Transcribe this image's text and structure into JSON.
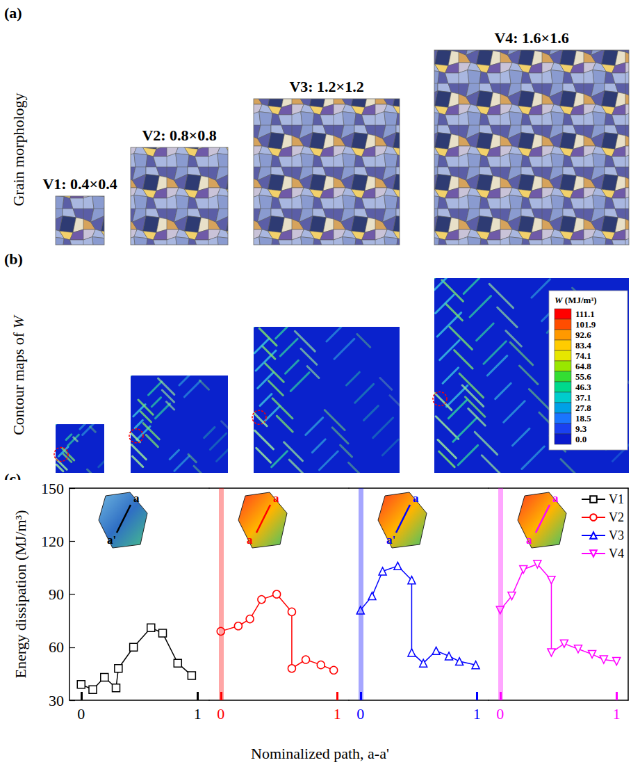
{
  "figure": {
    "panel_a": {
      "label": "(a)",
      "ylabel": "Grain morphology"
    },
    "panel_b": {
      "label": "(b)",
      "ylabel": "Contour maps of W",
      "variable": "W",
      "colorbar": {
        "title": "W (MJ/m³)",
        "ticks": [
          111.1,
          101.9,
          92.6,
          83.4,
          74.1,
          64.8,
          55.6,
          46.3,
          37.1,
          27.8,
          18.5,
          9.3,
          {
            "value": 0,
            "label": "0.0"
          }
        ],
        "colors": [
          "#ff0000",
          "#ff4d00",
          "#ff9900",
          "#ffcc00",
          "#e6e600",
          "#99e600",
          "#33dd33",
          "#00d98c",
          "#00cccc",
          "#00a0e6",
          "#1a75ff",
          "#1a40f0",
          "#0a1acc"
        ]
      }
    },
    "samples": [
      {
        "name": "V1",
        "title": "V1: 0.4×0.4",
        "size": [
          0.4,
          0.4
        ]
      },
      {
        "name": "V2",
        "title": "V2: 0.8×0.8",
        "size": [
          0.8,
          0.8
        ]
      },
      {
        "name": "V3",
        "title": "V3: 1.2×1.2",
        "size": [
          1.2,
          1.2
        ]
      },
      {
        "name": "V4",
        "title": "V4: 1.6×1.6",
        "size": [
          1.6,
          1.6
        ]
      }
    ]
  },
  "chart_data": {
    "label": "(c)",
    "type": "line",
    "xlabel": "Nominalized path, a-a'",
    "ylabel": "Energy dissipation (MJ/m³)",
    "xlim": [
      -0.1,
      1.1
    ],
    "xticks": [
      0,
      1
    ],
    "ylim": [
      30,
      150
    ],
    "yticks": [
      30,
      60,
      90,
      120,
      150
    ],
    "grid": false,
    "legend": "upper right",
    "series": [
      {
        "name": "V1",
        "color": "#000000",
        "marker": "square",
        "line_style": "solid",
        "inset_labels": [
          "a",
          "a'"
        ],
        "x": [
          0,
          0.1,
          0.2,
          0.3,
          0.32,
          0.45,
          0.6,
          0.7,
          0.83,
          0.95
        ],
        "values": [
          39,
          36,
          43,
          37,
          48,
          60,
          71,
          68,
          51,
          44
        ]
      },
      {
        "name": "V2",
        "color": "#ff0000",
        "marker": "circle",
        "line_style": "solid",
        "inset_labels": [
          "a",
          "a"
        ],
        "x": [
          0,
          0.15,
          0.25,
          0.35,
          0.48,
          0.61,
          0.61,
          0.73,
          0.86,
          0.97
        ],
        "values": [
          69,
          72,
          76,
          87,
          90,
          80,
          48,
          53,
          50,
          47
        ]
      },
      {
        "name": "V3",
        "color": "#0000ff",
        "marker": "triangle",
        "line_style": "solid",
        "inset_labels": [
          "a",
          "a'"
        ],
        "x": [
          0,
          0.1,
          0.19,
          0.32,
          0.44,
          0.44,
          0.54,
          0.65,
          0.76,
          0.85,
          0.99
        ],
        "values": [
          81,
          89,
          103,
          106,
          98,
          57,
          51,
          58,
          55,
          52,
          50
        ]
      },
      {
        "name": "V4",
        "color": "#ff00ff",
        "marker": "triangle_down",
        "line_style": "solid",
        "inset_labels": [
          "a",
          "a"
        ],
        "x": [
          0,
          0.1,
          0.2,
          0.32,
          0.44,
          0.44,
          0.55,
          0.67,
          0.79,
          0.89,
          1.0
        ],
        "values": [
          81,
          89,
          104,
          107,
          98,
          57,
          62,
          59,
          56,
          53,
          52
        ]
      }
    ]
  }
}
